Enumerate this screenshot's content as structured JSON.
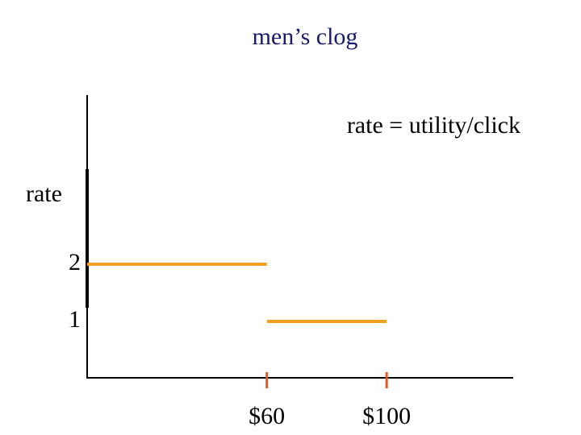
{
  "chart_data": {
    "type": "step",
    "title": "men’s clog",
    "annotation": "rate = utility/click",
    "y_label": "rate",
    "segments": [
      {
        "x0": 0,
        "x1": 60,
        "value": 2
      },
      {
        "x0": 60,
        "x1": 100,
        "value": 1
      }
    ],
    "color": "#f0a020",
    "tick_color": "#e05a20",
    "xlim": [
      0,
      142
    ],
    "ylim": [
      0,
      5
    ],
    "xticks": [
      {
        "value": 60,
        "label": "$60"
      },
      {
        "value": 100,
        "label": "$100"
      }
    ],
    "yticks": [
      1,
      2
    ]
  }
}
